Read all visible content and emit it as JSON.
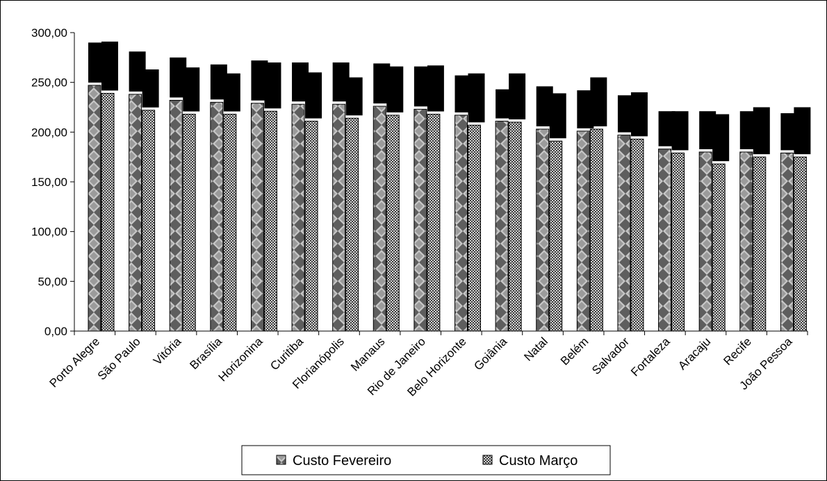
{
  "chart_data": {
    "type": "bar",
    "title": "",
    "xlabel": "",
    "ylabel": "",
    "ylim": [
      0,
      300
    ],
    "yticks": [
      "0,00",
      "50,00",
      "100,00",
      "150,00",
      "200,00",
      "250,00",
      "300,00"
    ],
    "grid": false,
    "legend_position": "bottom",
    "categories": [
      "Porto Alegre",
      "São Paulo",
      "Vitória",
      "Brasília",
      "Horizonina",
      "Curitiba",
      "Florianópolis",
      "Manaus",
      "Rio de Janeiro",
      "Belo Horizonte",
      "Goiânia",
      "Natal",
      "Belém",
      "Salvador",
      "Fortaleza",
      "Aracaju",
      "Recife",
      "João Pessoa"
    ],
    "series": [
      {
        "name": "Custo Fevereiro",
        "values": [
          247,
          238,
          232,
          230,
          229,
          228,
          228,
          226,
          223,
          217,
          211,
          203,
          201,
          197,
          183,
          180,
          180,
          179
        ],
        "top_values": [
          290,
          281,
          275,
          268,
          272,
          270,
          270,
          269,
          266,
          257,
          243,
          246,
          242,
          237,
          221,
          221,
          221,
          219
        ],
        "color": "#8c8c8c"
      },
      {
        "name": "Custo Março",
        "values": [
          239,
          222,
          218,
          218,
          221,
          211,
          214,
          217,
          218,
          207,
          210,
          191,
          203,
          193,
          179,
          168,
          175,
          175
        ],
        "top_values": [
          291,
          263,
          265,
          259,
          270,
          260,
          255,
          266,
          267,
          259,
          259,
          239,
          255,
          240,
          221,
          218,
          225,
          225
        ],
        "color": "#9a9a9a"
      }
    ]
  }
}
